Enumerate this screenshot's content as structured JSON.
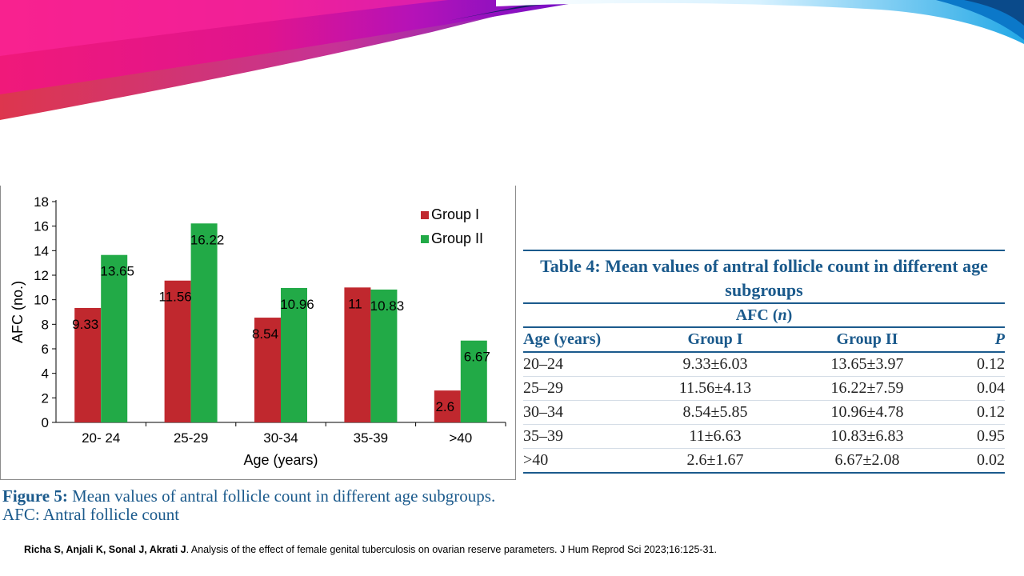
{
  "colors": {
    "group1": "#c0282e",
    "group2": "#22aa47",
    "accent": "#1b5a8c"
  },
  "chart_data": {
    "type": "bar",
    "categories": [
      "20- 24",
      "25-29",
      "30-34",
      "35-39",
      ">40"
    ],
    "series": [
      {
        "name": "Group I",
        "values": [
          9.33,
          11.56,
          8.54,
          11,
          2.6
        ],
        "labels": [
          "9.33",
          "11.56",
          "8.54",
          "11",
          "2.6"
        ]
      },
      {
        "name": "Group II",
        "values": [
          13.65,
          16.22,
          10.96,
          10.83,
          6.67
        ],
        "labels": [
          "13.65",
          "16.22",
          "10.96",
          "10.83",
          "6.67"
        ]
      }
    ],
    "yticks": [
      "0",
      "2",
      "4",
      "6",
      "8",
      "10",
      "12",
      "14",
      "16",
      "18"
    ],
    "ylim": [
      0,
      18
    ],
    "xlabel": "Age (years)",
    "ylabel": "AFC (no.)",
    "legend": "top-right"
  },
  "figure": {
    "label": "Figure 5:",
    "caption": " Mean values of antral follicle count in different age subgroups.",
    "caption2": "AFC: Antral follicle count"
  },
  "table": {
    "title": "Table 4: Mean values of antral follicle count in different age subgroups",
    "subheader": "AFC (n)",
    "headers": [
      "Age (years)",
      "Group I",
      "Group II",
      "P"
    ],
    "rows": [
      [
        "20–24",
        "9.33±6.03",
        "13.65±3.97",
        "0.12"
      ],
      [
        "25–29",
        "11.56±4.13",
        "16.22±7.59",
        "0.04"
      ],
      [
        "30–34",
        "8.54±5.85",
        "10.96±4.78",
        "0.12"
      ],
      [
        "35–39",
        "11±6.63",
        "10.83±6.83",
        "0.95"
      ],
      [
        ">40",
        "2.6±1.67",
        "6.67±2.08",
        "0.02"
      ]
    ]
  },
  "citation": {
    "authors": "Richa S, Anjali K, Sonal J, Akrati J",
    "text": ". Analysis of the effect of female genital tuberculosis on ovarian reserve parameters. J Hum Reprod Sci 2023;16:125-31."
  }
}
